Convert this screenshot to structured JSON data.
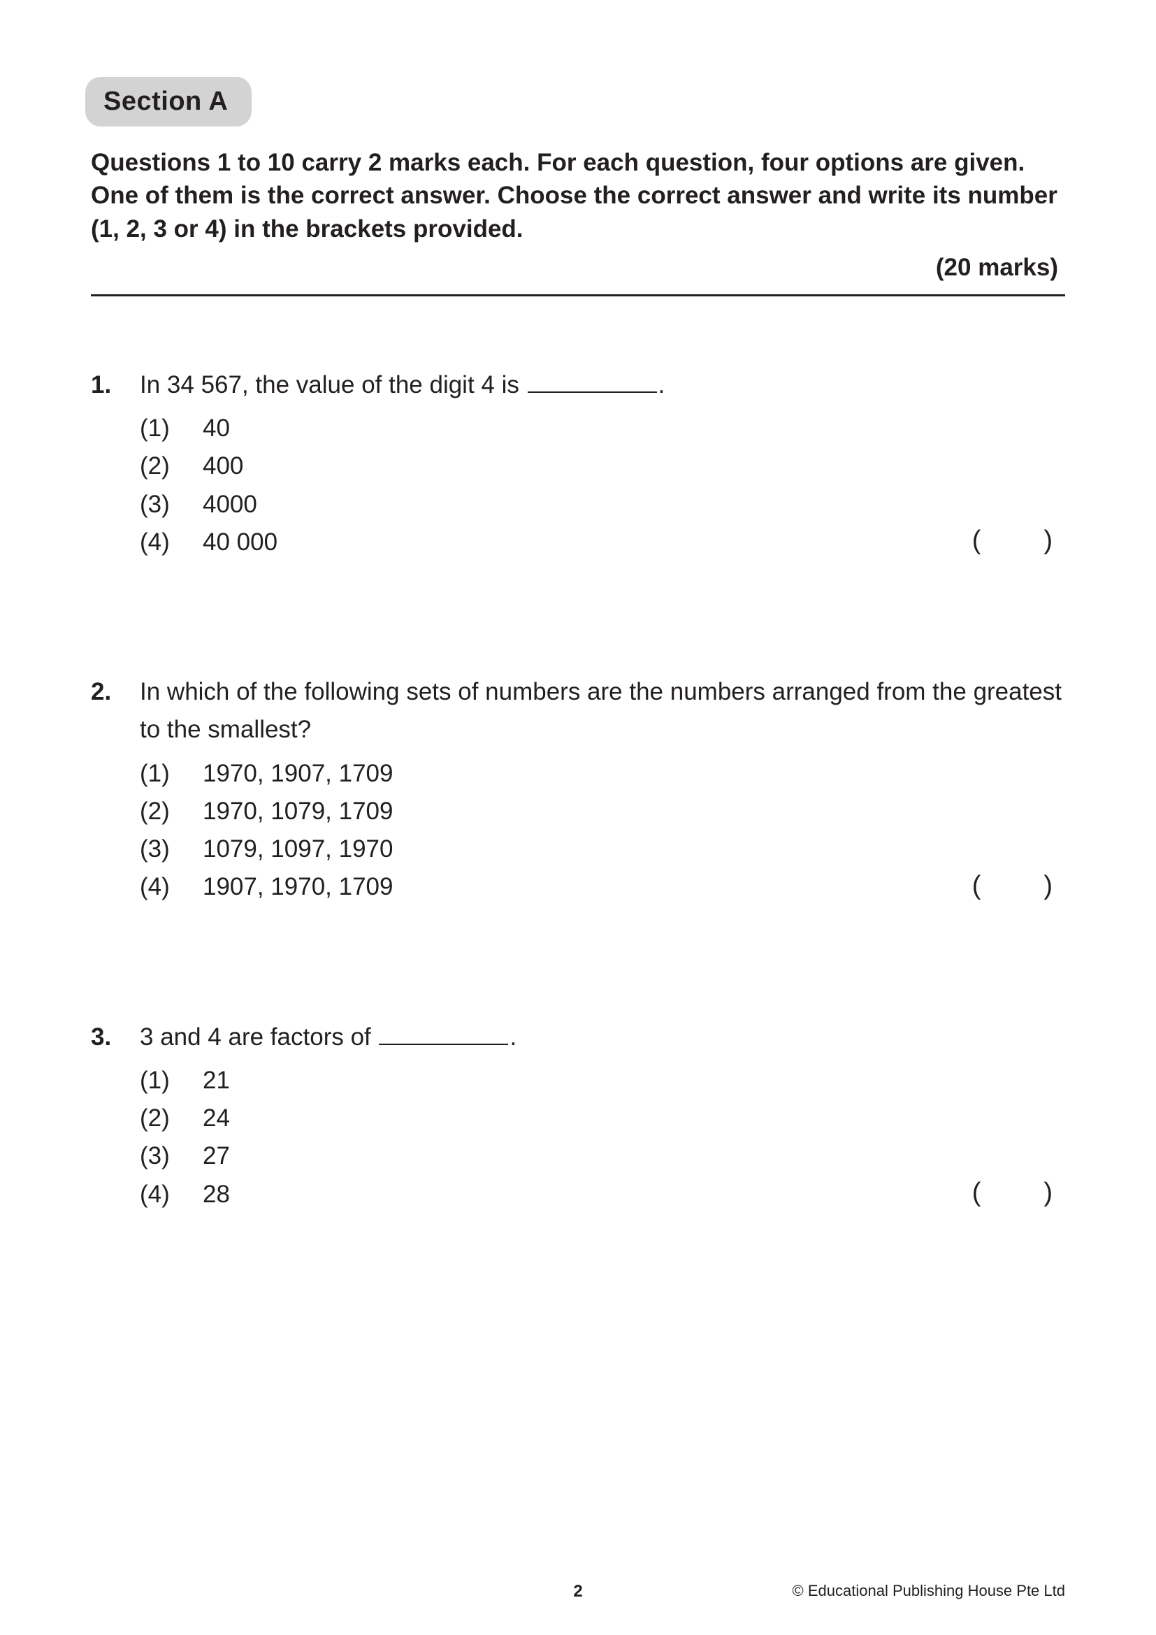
{
  "section_label": "Section A",
  "instructions": "Questions 1 to 10 carry 2 marks each. For each question, four options are given. One of them is the correct answer. Choose the correct answer and write its number (1, 2, 3 or 4) in the brackets provided.",
  "marks_label": "(20 marks)",
  "bracket_open": "(",
  "bracket_close": ")",
  "questions": [
    {
      "number": "1.",
      "stem_before": "In 34 567, the value of the digit 4 is ",
      "stem_after": ".",
      "has_blank": true,
      "options": [
        {
          "num": "(1)",
          "text": "40"
        },
        {
          "num": "(2)",
          "text": "400"
        },
        {
          "num": "(3)",
          "text": "4000"
        },
        {
          "num": "(4)",
          "text": "40 000"
        }
      ]
    },
    {
      "number": "2.",
      "stem_before": "In which of the following sets of numbers are the numbers arranged from the greatest to the smallest?",
      "stem_after": "",
      "has_blank": false,
      "options": [
        {
          "num": "(1)",
          "text": "1970, 1907, 1709"
        },
        {
          "num": "(2)",
          "text": "1970, 1079, 1709"
        },
        {
          "num": "(3)",
          "text": "1079, 1097, 1970"
        },
        {
          "num": "(4)",
          "text": "1907, 1970, 1709"
        }
      ]
    },
    {
      "number": "3.",
      "stem_before": "3 and 4 are factors of ",
      "stem_after": ".",
      "has_blank": true,
      "options": [
        {
          "num": "(1)",
          "text": "21"
        },
        {
          "num": "(2)",
          "text": "24"
        },
        {
          "num": "(3)",
          "text": "27"
        },
        {
          "num": "(4)",
          "text": "28"
        }
      ]
    }
  ],
  "page_number": "2",
  "copyright": "© Educational Publishing House Pte Ltd"
}
